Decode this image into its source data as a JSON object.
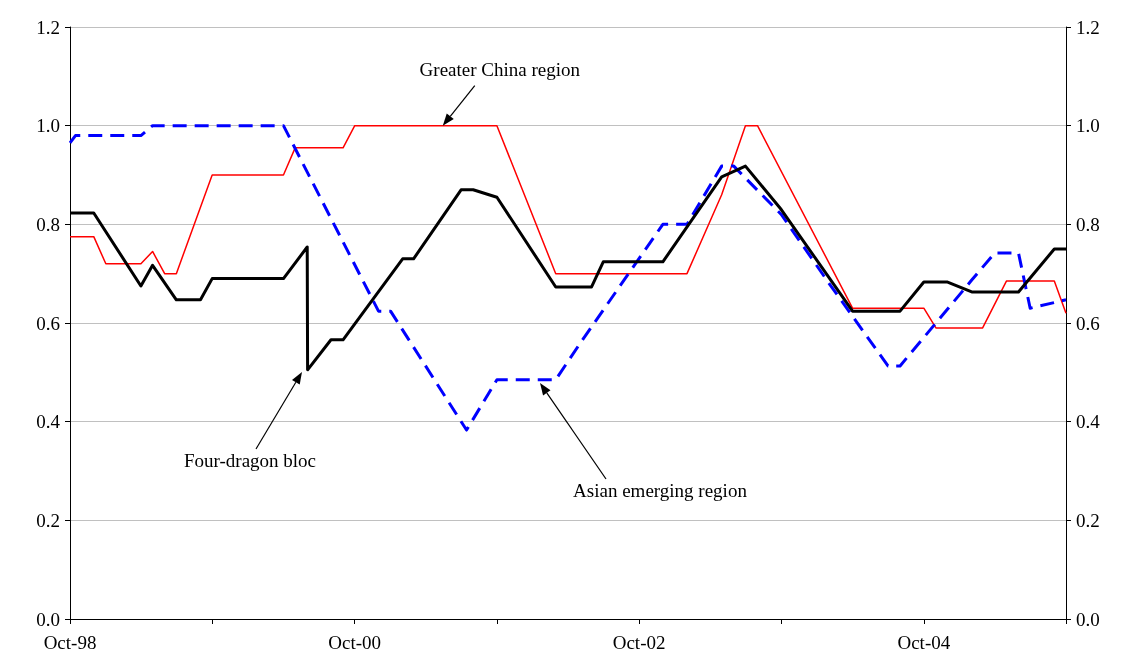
{
  "chart_data": {
    "type": "line",
    "xlim": [
      "1998-10",
      "2005-10"
    ],
    "xticks": [
      {
        "value": "1998-10",
        "label": "Oct-98"
      },
      {
        "value": "1999-10",
        "label": null
      },
      {
        "value": "2000-10",
        "label": "Oct-00"
      },
      {
        "value": "2001-10",
        "label": null
      },
      {
        "value": "2002-10",
        "label": "Oct-02"
      },
      {
        "value": "2003-10",
        "label": null
      },
      {
        "value": "2004-10",
        "label": "Oct-04"
      },
      {
        "value": "2005-10",
        "label": null
      }
    ],
    "ylim": [
      0,
      1.2
    ],
    "yticks": [
      {
        "value": 0,
        "label": "0.0"
      },
      0.2,
      0.4,
      0.6,
      0.8,
      {
        "value": 1,
        "label": "1.0"
      },
      1.2
    ],
    "y2lim": [
      0,
      1.2
    ],
    "y2ticks": [
      {
        "value": 0,
        "label": "0.0"
      },
      0.2,
      0.4,
      0.6,
      0.8,
      {
        "value": 1,
        "label": "1.0"
      },
      1.2
    ],
    "grid": "y",
    "marker": "none",
    "series": [
      {
        "color": "#ff0000",
        "line_style": "solid",
        "x": [
          "1998-10",
          "1998-12",
          "1999-01",
          "1999-04",
          "1999-05",
          "1999-06",
          "1999-07",
          "1999-10",
          "2000-04",
          "2000-05",
          "2000-09",
          "2000-10",
          "2001-10",
          "2002-03",
          "2003-02",
          "2003-05",
          "2003-07",
          "2003-08",
          "2004-04",
          "2004-10",
          "2004-11",
          "2005-03",
          "2005-05",
          "2005-09",
          "2005-10"
        ],
        "values": [
          0.775,
          0.775,
          0.72,
          0.72,
          0.745,
          0.7,
          0.7,
          0.9,
          0.9,
          0.955,
          0.955,
          1.0,
          1.0,
          0.7,
          0.7,
          0.86,
          1.0,
          1.0,
          0.63,
          0.63,
          0.59,
          0.59,
          0.685,
          0.685,
          0.62
        ]
      },
      {
        "color": "#0000ff",
        "line_style": "dashed",
        "x": [
          "1998-10",
          "1998-10-15",
          "1999-04",
          "1999-05",
          "2000-04",
          "2000-12",
          "2001-01",
          "2001-07-15",
          "2001-10",
          "2002-03",
          "2002-05",
          "2002-12",
          "2003-02",
          "2003-05",
          "2003-06",
          "2003-10",
          "2004-02",
          "2004-07",
          "2004-08",
          "2005-02",
          "2005-04",
          "2005-06",
          "2005-07",
          "2005-10"
        ],
        "values": [
          0.965,
          0.98,
          0.98,
          1.0,
          1.0,
          0.624,
          0.624,
          0.383,
          0.485,
          0.485,
          0.557,
          0.8,
          0.8,
          0.918,
          0.918,
          0.82,
          0.68,
          0.513,
          0.513,
          0.687,
          0.742,
          0.742,
          0.63,
          0.647
        ]
      },
      {
        "color": "#000000",
        "line_style": "solid",
        "x": [
          "1998-10",
          "1998-12",
          "1999-04",
          "1999-05",
          "1999-07",
          "1999-09",
          "1999-10",
          "2000-04",
          "2000-06",
          "2000-06-02",
          "2000-08",
          "2000-09",
          "2001-02",
          "2001-03",
          "2001-07",
          "2001-08",
          "2001-10",
          "2002-03",
          "2002-06",
          "2002-07",
          "2002-12",
          "2003-05",
          "2003-07",
          "2003-10",
          "2004-04",
          "2004-08",
          "2004-10",
          "2004-12",
          "2005-02",
          "2005-06",
          "2005-09",
          "2005-10"
        ],
        "values": [
          0.823,
          0.823,
          0.675,
          0.717,
          0.647,
          0.647,
          0.69,
          0.69,
          0.754,
          0.505,
          0.566,
          0.566,
          0.73,
          0.73,
          0.87,
          0.87,
          0.855,
          0.673,
          0.673,
          0.724,
          0.724,
          0.896,
          0.918,
          0.83,
          0.624,
          0.624,
          0.683,
          0.683,
          0.663,
          0.663,
          0.75,
          0.75
        ]
      }
    ],
    "annotations": [
      {
        "text": "Greater China region",
        "x": "2001-05-15",
        "y": 1.0
      },
      "Four-dragon bloc",
      "Asian emerging region"
    ]
  }
}
